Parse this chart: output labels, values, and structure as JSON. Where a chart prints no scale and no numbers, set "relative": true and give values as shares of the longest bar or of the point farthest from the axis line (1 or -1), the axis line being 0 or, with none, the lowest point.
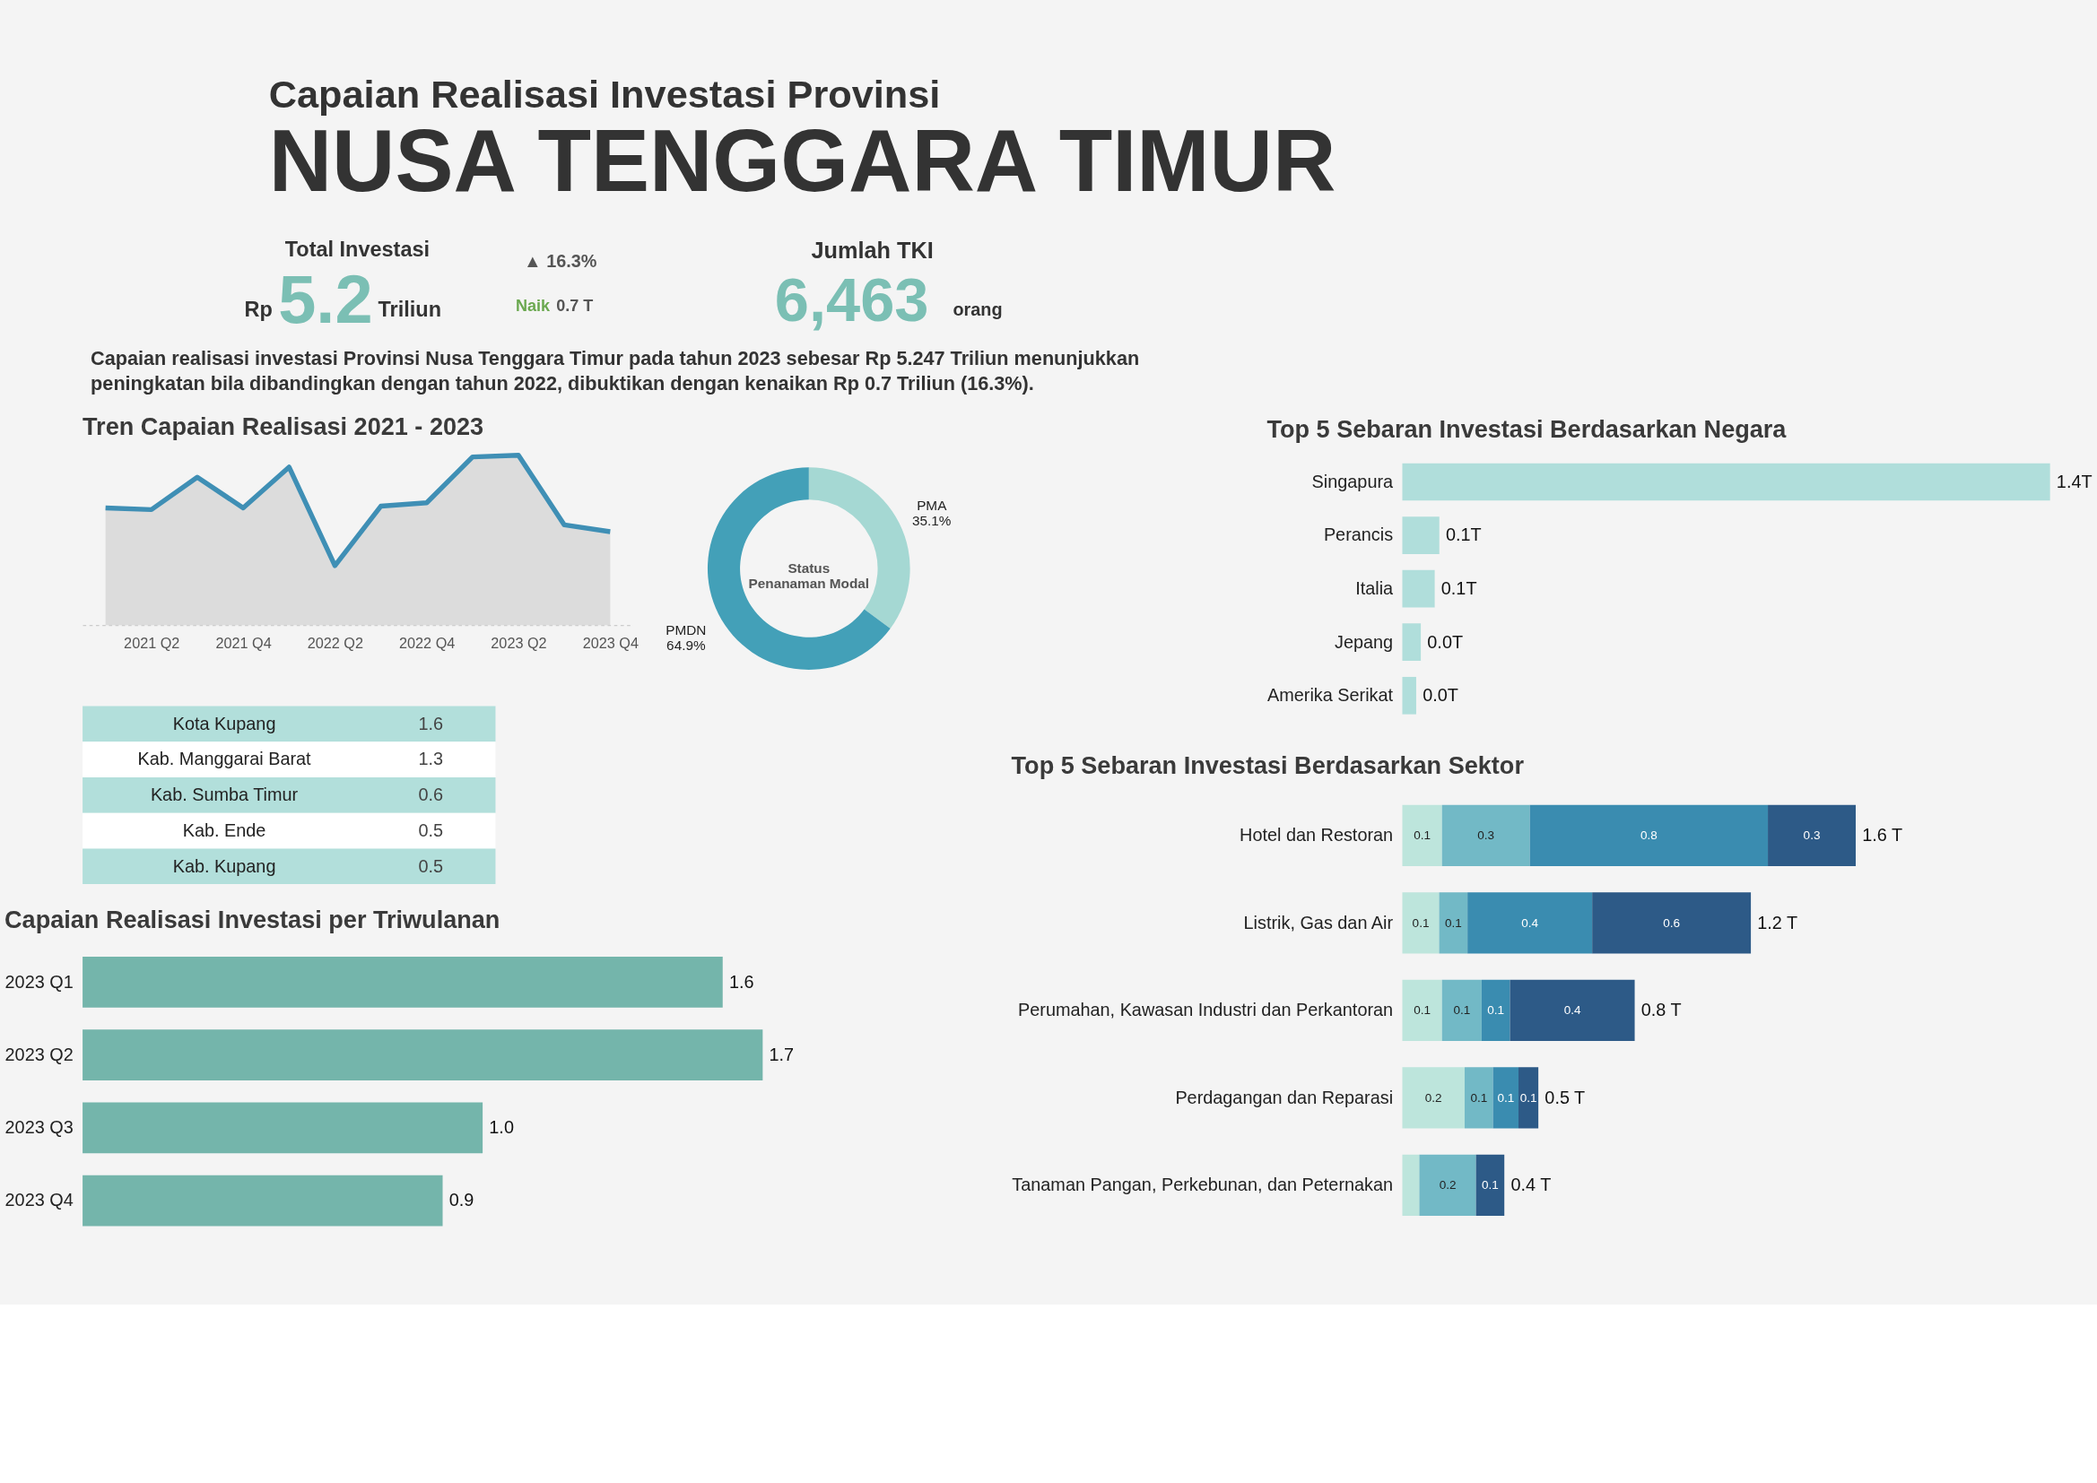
{
  "chart_data": [
    {
      "type": "other",
      "title": "Capaian Realisasi Investasi Provinsi",
      "subtitle": "NUSA TENGGARA TIMUR",
      "annotations": [
        "Total Investasi",
        "Rp",
        "5.2",
        "Triliun",
        "▲ 16.3%",
        "Naik",
        "0.7 T",
        "Jumlah TKI",
        "6,463",
        "orang",
        "Capaian realisasi investasi Provinsi Nusa Tenggara Timur pada tahun 2023 sebesar  Rp 5.247 Triliun menunjukkan  peningkatan bila dibandingkan dengan tahun 2022, dibuktikan dengan kenaikan Rp 0.7 Triliun (16.3%)."
      ]
    },
    {
      "type": "area",
      "title": "Tren Capaian Realisasi 2021 - 2023",
      "relative": true,
      "categories": [
        null,
        "2021 Q2",
        null,
        "2021 Q4",
        null,
        "2022 Q2",
        null,
        "2022 Q4",
        null,
        "2023 Q2",
        null,
        "2023 Q4"
      ],
      "series": [
        {
          "color": "#3f8fb5",
          "values": [
            0.69,
            0.68,
            0.87,
            0.69,
            0.93,
            0.35,
            0.7,
            0.72,
            0.99,
            1.0,
            0.59,
            0.55
          ]
        }
      ]
    },
    {
      "type": "donut",
      "title": "Status Penanaman Modal",
      "categories": [
        "PMA",
        "PMDN"
      ],
      "values": [
        35.1,
        64.9
      ],
      "colors": [
        "#a5d8d3",
        "#43a0b8"
      ],
      "value_labels": [
        "35.1%",
        "64.9%"
      ]
    },
    {
      "type": "other",
      "categories": [
        "Kota Kupang",
        "Kab. Manggarai Barat",
        "Kab. Sumba Timur",
        "Kab. Ende",
        "Kab. Kupang"
      ],
      "values": [
        1.6,
        1.3,
        0.6,
        0.5,
        0.5
      ],
      "data_labels": true
    },
    {
      "type": "bar",
      "orientation": "horizontal",
      "title": "Capaian Realisasi Investasi per Triwulanan",
      "categories": [
        "2023 Q1",
        "2023 Q2",
        "2023 Q3",
        "2023 Q4"
      ],
      "values": [
        1.6,
        1.7,
        1.0,
        0.9
      ],
      "color": "#74b5ab",
      "value_labels": [
        "1.6",
        "1.7",
        "1.0",
        "0.9"
      ]
    },
    {
      "type": "bar",
      "orientation": "horizontal",
      "title": "Top 5 Sebaran Investasi Berdasarkan Negara",
      "categories": [
        "Singapura",
        "Perancis",
        "Italia",
        "Jepang",
        "Amerika Serikat"
      ],
      "values": [
        1.4,
        0.08,
        0.07,
        0.04,
        0.03
      ],
      "value_labels": [
        "1.4T",
        "0.1T",
        "0.1T",
        "0.0T",
        "0.0T"
      ],
      "color": "#b0dedb"
    },
    {
      "type": "bar",
      "orientation": "horizontal",
      "stacked": true,
      "title": "Top 5 Sebaran Investasi Berdasarkan Sektor",
      "categories": [
        "Hotel dan Restoran",
        "Listrik, Gas dan Air",
        "Perumahan, Kawasan Industri dan Perkantoran",
        "Perdagangan dan Reparasi",
        "Tanaman Pangan, Perkebunan, dan Peternakan"
      ],
      "series": [
        {
          "color": "#bde5dc",
          "values": [
            0.14,
            0.13,
            0.14,
            0.22,
            0.06
          ],
          "value_labels": [
            "0.1",
            "0.1",
            "0.1",
            "0.2",
            null
          ]
        },
        {
          "color": "#72b9c6",
          "values": [
            0.31,
            0.1,
            0.14,
            0.1,
            0.2
          ],
          "value_labels": [
            "0.3",
            "0.1",
            "0.1",
            "0.1",
            "0.2"
          ]
        },
        {
          "color": "#3a8cb0",
          "values": [
            0.84,
            0.44,
            0.1,
            0.09,
            null
          ],
          "value_labels": [
            "0.8",
            "0.4",
            "0.1",
            "0.1",
            null
          ]
        },
        {
          "color": "#2d5a87",
          "values": [
            0.31,
            0.56,
            0.44,
            0.07,
            0.1
          ],
          "value_labels": [
            "0.3",
            "0.6",
            "0.4",
            "0.1",
            "0.1"
          ]
        }
      ],
      "totals": [
        "1.6 T",
        "1.2 T",
        "0.8 T",
        "0.5 T",
        "0.4 T"
      ]
    }
  ]
}
